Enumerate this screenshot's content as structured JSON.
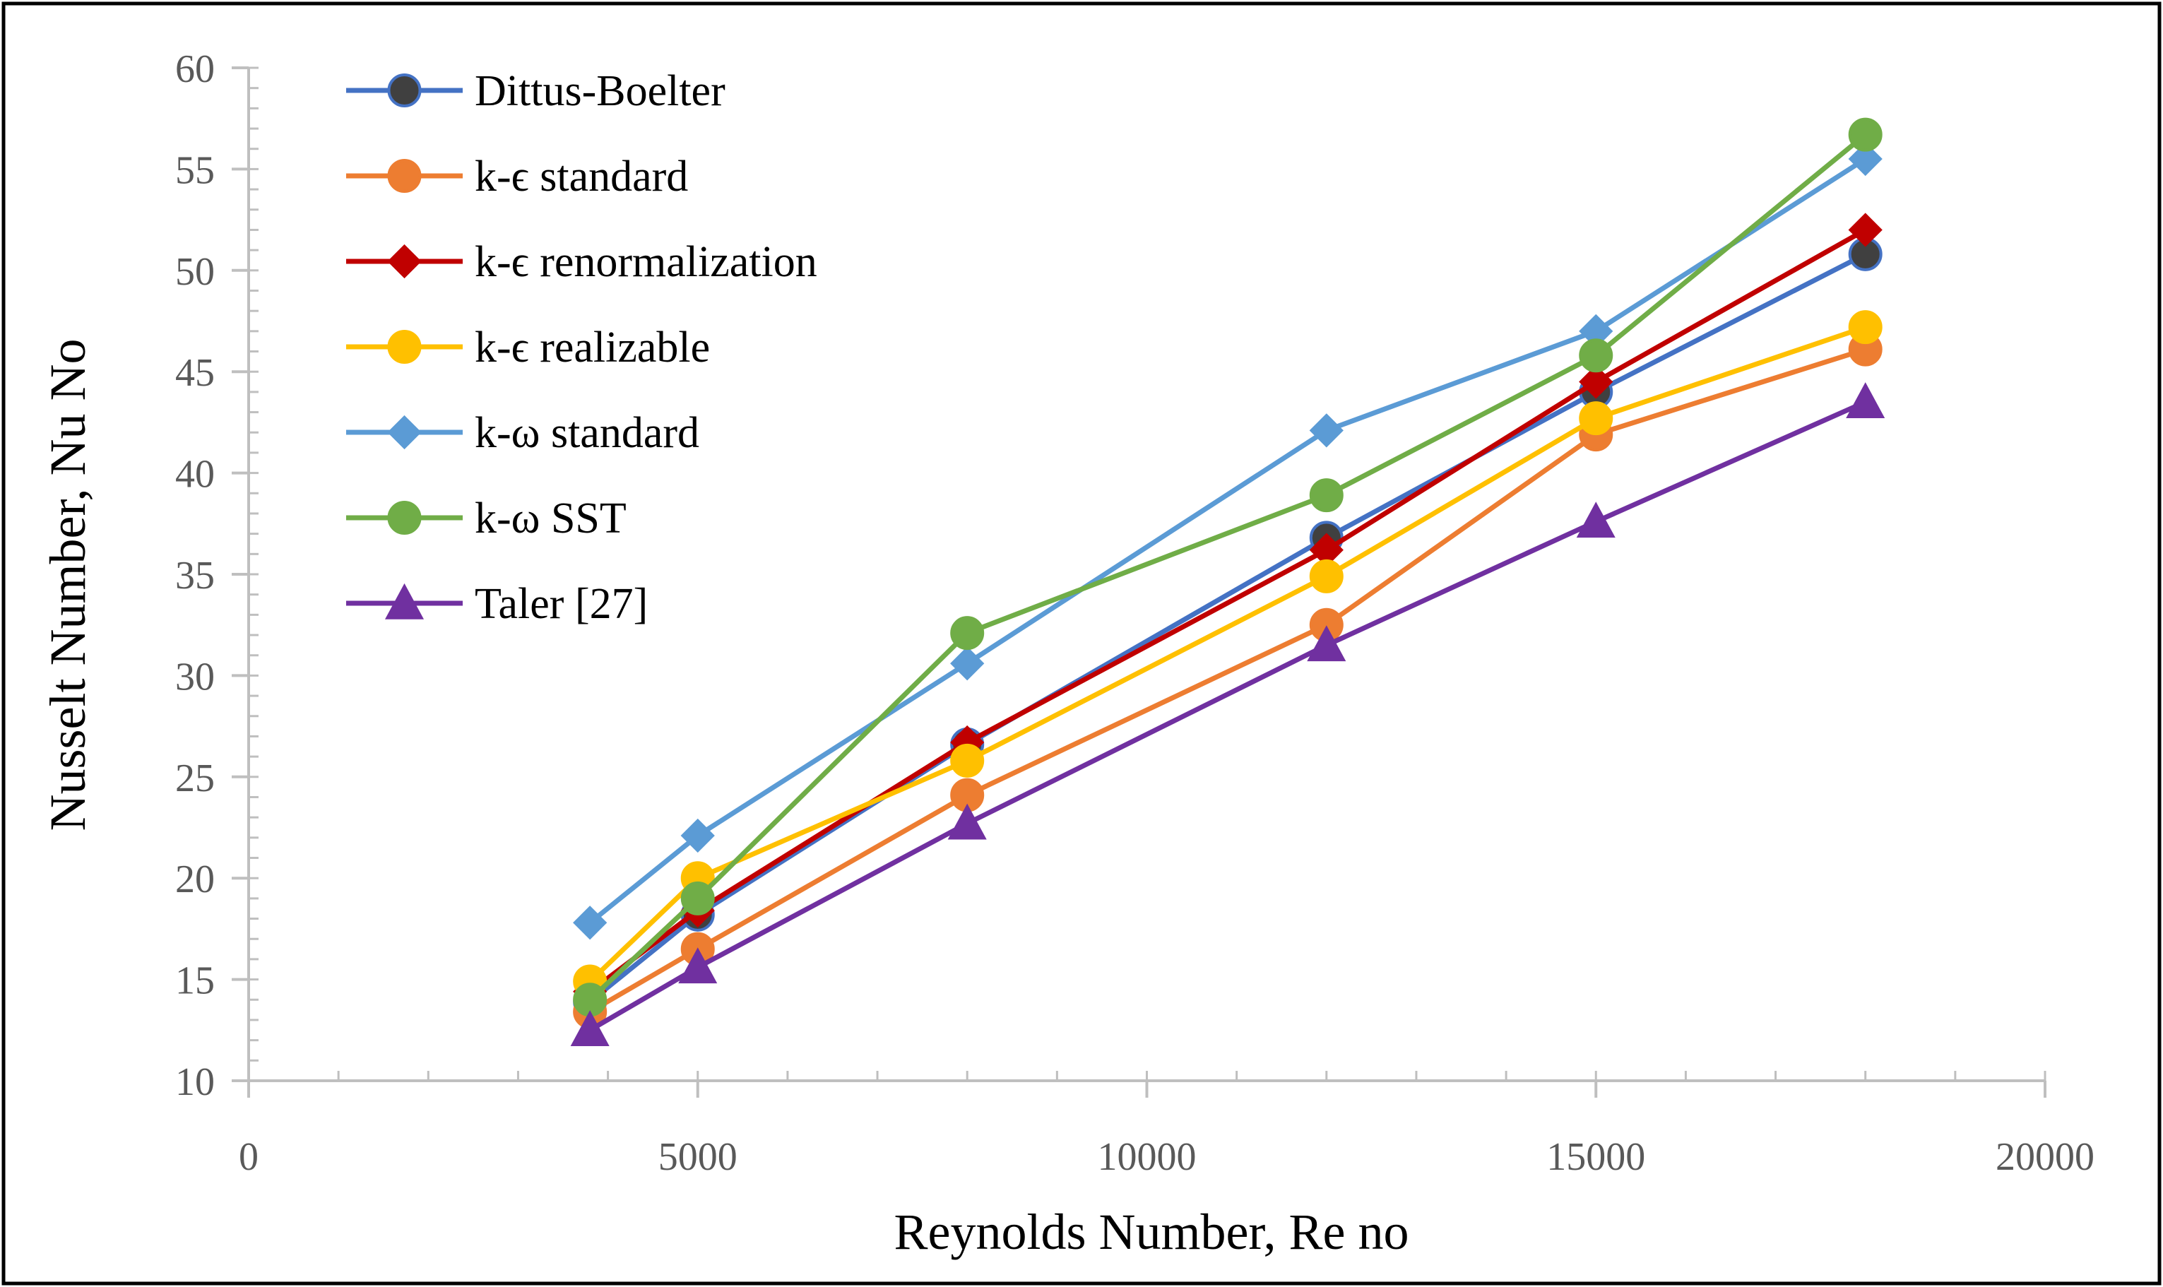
{
  "chart_data": {
    "type": "line",
    "title": "",
    "xlabel": "Reynolds Number, Re no",
    "ylabel": "Nusselt Number, Nu No",
    "xlim": [
      0,
      20000
    ],
    "ylim": [
      10,
      60
    ],
    "xticks": [
      0,
      5000,
      10000,
      15000,
      20000
    ],
    "yticks": [
      10,
      15,
      20,
      25,
      30,
      35,
      40,
      45,
      50,
      55,
      60
    ],
    "x_minor_step": 1000,
    "y_minor_step": 1,
    "grid": false,
    "legend_position": "top-left",
    "x": [
      3800,
      5000,
      8000,
      12000,
      15000,
      18000
    ],
    "series": [
      {
        "name": "Dittus-Boelter",
        "color": "#4472C4",
        "marker": "circle",
        "marker_fill": "#404040",
        "values": [
          13.9,
          18.2,
          26.6,
          36.8,
          44.0,
          50.8
        ]
      },
      {
        "name": "k-ϵ standard",
        "color": "#ED7D31",
        "marker": "circle",
        "marker_fill": "#ED7D31",
        "values": [
          13.4,
          16.5,
          24.1,
          32.5,
          41.9,
          46.1
        ]
      },
      {
        "name": "k-ϵ renormalization",
        "color": "#C00000",
        "marker": "diamond",
        "marker_fill": "#C00000",
        "values": [
          14.4,
          18.4,
          26.7,
          36.2,
          44.5,
          52.0
        ]
      },
      {
        "name": "k-ϵ realizable",
        "color": "#FFC000",
        "marker": "circle",
        "marker_fill": "#FFC000",
        "values": [
          14.9,
          20.0,
          25.8,
          34.9,
          42.7,
          47.2
        ]
      },
      {
        "name": "k-ω standard",
        "color": "#5B9BD5",
        "marker": "diamond",
        "marker_fill": "#5B9BD5",
        "values": [
          17.8,
          22.1,
          30.6,
          42.1,
          47.0,
          55.5
        ]
      },
      {
        "name": "k-ω SST",
        "color": "#70AD47",
        "marker": "circle",
        "marker_fill": "#70AD47",
        "values": [
          14.0,
          19.0,
          32.1,
          38.9,
          45.8,
          56.7
        ]
      },
      {
        "name": "Taler [27]",
        "color": "#7030A0",
        "marker": "triangle",
        "marker_fill": "#7030A0",
        "values": [
          12.5,
          15.6,
          22.7,
          31.5,
          37.6,
          43.5
        ]
      }
    ]
  }
}
